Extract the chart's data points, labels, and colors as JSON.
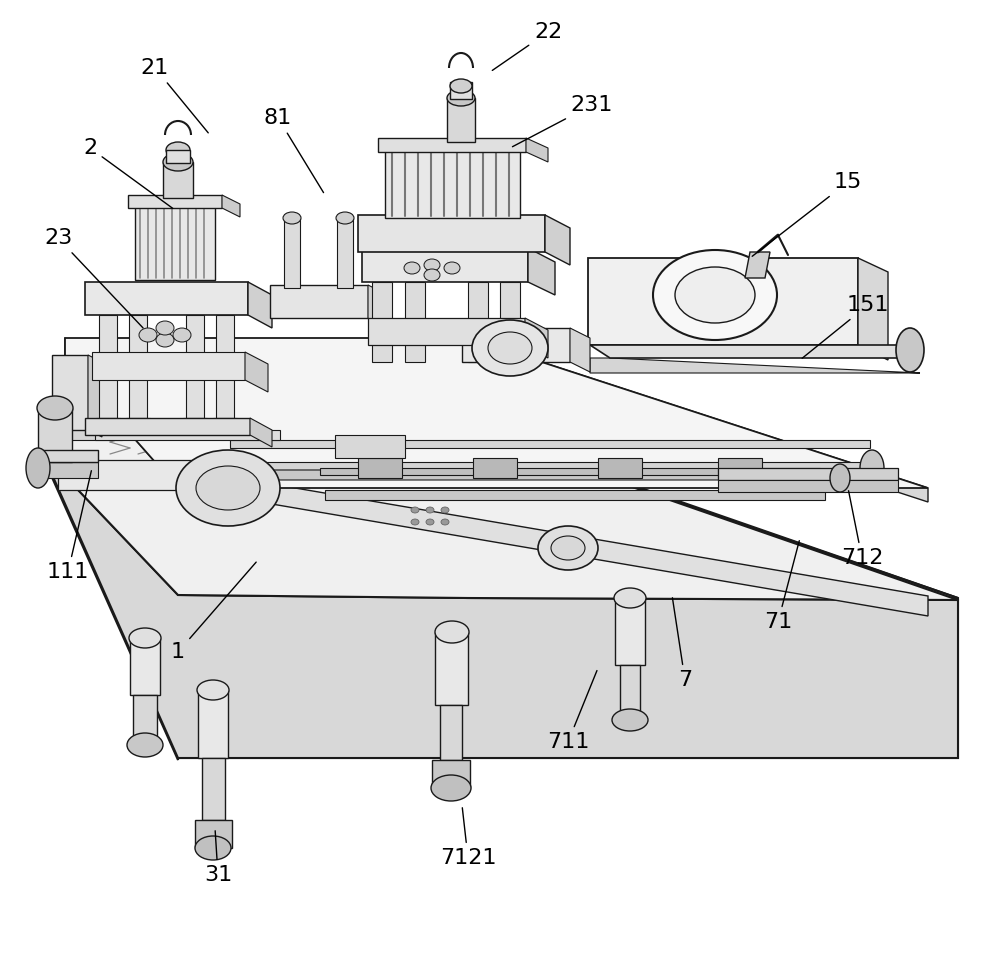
{
  "bg": "#ffffff",
  "lc": "#1a1a1a",
  "fc_light": "#f0f0f0",
  "fc_mid": "#d8d8d8",
  "fc_dark": "#b0b0b0",
  "lw_main": 1.2,
  "lw_thin": 0.7,
  "label_fs": 16,
  "annotations": [
    [
      "21",
      155,
      68,
      210,
      135
    ],
    [
      "2",
      90,
      148,
      175,
      210
    ],
    [
      "23",
      58,
      238,
      145,
      330
    ],
    [
      "81",
      278,
      118,
      325,
      195
    ],
    [
      "22",
      548,
      32,
      490,
      72
    ],
    [
      "231",
      592,
      105,
      510,
      148
    ],
    [
      "15",
      848,
      182,
      750,
      258
    ],
    [
      "151",
      868,
      305,
      800,
      360
    ],
    [
      "111",
      68,
      572,
      92,
      468
    ],
    [
      "1",
      178,
      652,
      258,
      560
    ],
    [
      "31",
      218,
      875,
      215,
      828
    ],
    [
      "7121",
      468,
      858,
      462,
      805
    ],
    [
      "711",
      568,
      742,
      598,
      668
    ],
    [
      "7",
      685,
      680,
      672,
      595
    ],
    [
      "71",
      778,
      622,
      800,
      538
    ],
    [
      "712",
      862,
      558,
      848,
      488
    ]
  ]
}
